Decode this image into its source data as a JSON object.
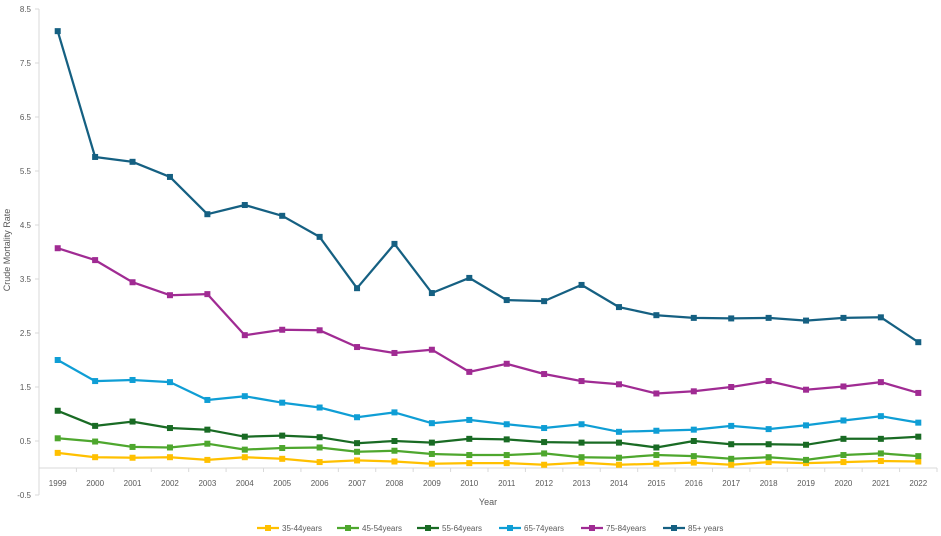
{
  "chart_data": {
    "type": "line",
    "title": "",
    "xlabel": "Year",
    "ylabel": "Crude Mortality Rate",
    "ylim": [
      -0.5,
      8.5
    ],
    "yticks": [
      -0.5,
      0.5,
      1.5,
      2.5,
      3.5,
      4.5,
      5.5,
      6.5,
      7.5,
      8.5
    ],
    "ytick_labels": [
      "-0.5",
      "0.5",
      "1.5",
      "2.5",
      "3.5",
      "4.5",
      "5.5",
      "6.5",
      "7.5",
      "8.5"
    ],
    "grid": false,
    "legend_position": "bottom",
    "categories": [
      "1999",
      "2000",
      "2001",
      "2002",
      "2003",
      "2004",
      "2005",
      "2006",
      "2007",
      "2008",
      "2009",
      "2010",
      "2011",
      "2012",
      "2013",
      "2014",
      "2015",
      "2016",
      "2017",
      "2018",
      "2019",
      "2020",
      "2021",
      "2022"
    ],
    "series": [
      {
        "name": "35-44years",
        "color": "#FFC000",
        "values": [
          0.28,
          0.2,
          0.19,
          0.2,
          0.15,
          0.2,
          0.17,
          0.11,
          0.14,
          0.12,
          0.08,
          0.09,
          0.09,
          0.06,
          0.1,
          0.06,
          0.08,
          0.1,
          0.06,
          0.11,
          0.09,
          0.11,
          0.13,
          0.12
        ]
      },
      {
        "name": "45-54years",
        "color": "#4EA72E",
        "values": [
          0.55,
          0.49,
          0.39,
          0.38,
          0.45,
          0.34,
          0.37,
          0.38,
          0.3,
          0.32,
          0.26,
          0.24,
          0.24,
          0.27,
          0.2,
          0.19,
          0.24,
          0.22,
          0.17,
          0.2,
          0.15,
          0.24,
          0.27,
          0.22
        ]
      },
      {
        "name": "55-64years",
        "color": "#196B24",
        "values": [
          1.06,
          0.78,
          0.86,
          0.74,
          0.71,
          0.58,
          0.6,
          0.57,
          0.46,
          0.5,
          0.47,
          0.54,
          0.53,
          0.48,
          0.47,
          0.47,
          0.38,
          0.5,
          0.44,
          0.44,
          0.43,
          0.54,
          0.54,
          0.58
        ]
      },
      {
        "name": "65-74years",
        "color": "#0F9ED5",
        "values": [
          2.0,
          1.61,
          1.63,
          1.59,
          1.26,
          1.33,
          1.21,
          1.12,
          0.94,
          1.03,
          0.83,
          0.89,
          0.81,
          0.74,
          0.81,
          0.67,
          0.69,
          0.71,
          0.78,
          0.72,
          0.79,
          0.88,
          0.96,
          0.84
        ]
      },
      {
        "name": "75-84years",
        "color": "#A02B93",
        "values": [
          4.07,
          3.85,
          3.44,
          3.2,
          3.22,
          2.46,
          2.56,
          2.55,
          2.24,
          2.13,
          2.19,
          1.78,
          1.93,
          1.74,
          1.61,
          1.55,
          1.38,
          1.42,
          1.5,
          1.61,
          1.45,
          1.51,
          1.59,
          1.39
        ]
      },
      {
        "name": "85+ years",
        "color": "#156082",
        "values": [
          8.09,
          5.76,
          5.67,
          5.39,
          4.7,
          4.87,
          4.67,
          4.28,
          3.33,
          4.15,
          3.24,
          3.52,
          3.11,
          3.09,
          3.39,
          2.98,
          2.83,
          2.78,
          2.77,
          2.78,
          2.73,
          2.78,
          2.79,
          2.33
        ]
      }
    ]
  }
}
